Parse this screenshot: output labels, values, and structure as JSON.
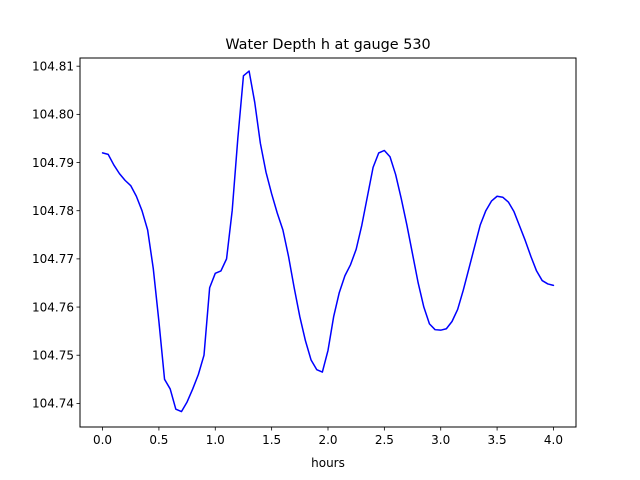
{
  "chart_data": {
    "type": "line",
    "title": "Water Depth h at gauge 530",
    "xlabel": "hours",
    "ylabel": "",
    "xlim": [
      -0.2,
      4.2
    ],
    "ylim": [
      104.7351,
      104.8117
    ],
    "x_ticks": [
      0.0,
      0.5,
      1.0,
      1.5,
      2.0,
      2.5,
      3.0,
      3.5,
      4.0
    ],
    "x_tick_labels": [
      "0.0",
      "0.5",
      "1.0",
      "1.5",
      "2.0",
      "2.5",
      "3.0",
      "3.5",
      "4.0"
    ],
    "y_ticks": [
      104.74,
      104.75,
      104.76,
      104.77,
      104.78,
      104.79,
      104.8,
      104.81
    ],
    "y_tick_labels": [
      "104.74",
      "104.75",
      "104.76",
      "104.77",
      "104.78",
      "104.79",
      "104.80",
      "104.81"
    ],
    "grid": false,
    "line_color": "#0000ff",
    "series": [
      {
        "x": [
          0.0,
          0.05,
          0.1,
          0.15,
          0.2,
          0.25,
          0.3,
          0.35,
          0.4,
          0.45,
          0.5,
          0.55,
          0.6,
          0.65,
          0.7,
          0.75,
          0.8,
          0.85,
          0.9,
          0.95,
          1.0,
          1.05,
          1.1,
          1.15,
          1.2,
          1.25,
          1.3,
          1.35,
          1.4,
          1.45,
          1.5,
          1.55,
          1.6,
          1.65,
          1.7,
          1.75,
          1.8,
          1.85,
          1.9,
          1.95,
          2.0,
          2.05,
          2.1,
          2.15,
          2.2,
          2.25,
          2.3,
          2.35,
          2.4,
          2.45,
          2.5,
          2.55,
          2.6,
          2.65,
          2.7,
          2.75,
          2.8,
          2.85,
          2.9,
          2.95,
          3.0,
          3.05,
          3.1,
          3.15,
          3.2,
          3.25,
          3.3,
          3.35,
          3.4,
          3.45,
          3.5,
          3.55,
          3.6,
          3.65,
          3.7,
          3.75,
          3.8,
          3.85,
          3.9,
          3.95,
          4.0
        ],
        "values": [
          104.792,
          104.7917,
          104.7895,
          104.7877,
          104.7863,
          104.7852,
          104.783,
          104.78,
          104.776,
          104.768,
          104.757,
          104.745,
          104.743,
          104.7388,
          104.7383,
          104.7403,
          104.743,
          104.746,
          104.75,
          104.764,
          104.767,
          104.7675,
          104.77,
          104.78,
          104.795,
          104.808,
          104.809,
          104.8025,
          104.794,
          104.788,
          104.7835,
          104.7795,
          104.776,
          104.7705,
          104.764,
          104.758,
          104.753,
          104.749,
          104.747,
          104.7465,
          104.751,
          104.758,
          104.763,
          104.7665,
          104.7688,
          104.772,
          104.777,
          104.783,
          104.789,
          104.792,
          104.7925,
          104.7912,
          104.7875,
          104.7825,
          104.777,
          104.771,
          104.765,
          104.76,
          104.7565,
          104.7553,
          104.7552,
          104.7555,
          104.757,
          104.7595,
          104.7635,
          104.768,
          104.7725,
          104.777,
          104.78,
          104.782,
          104.783,
          104.7828,
          104.7818,
          104.7798,
          104.7768,
          104.7738,
          104.7705,
          104.7675,
          104.7655,
          104.7648,
          104.7645
        ]
      }
    ]
  }
}
